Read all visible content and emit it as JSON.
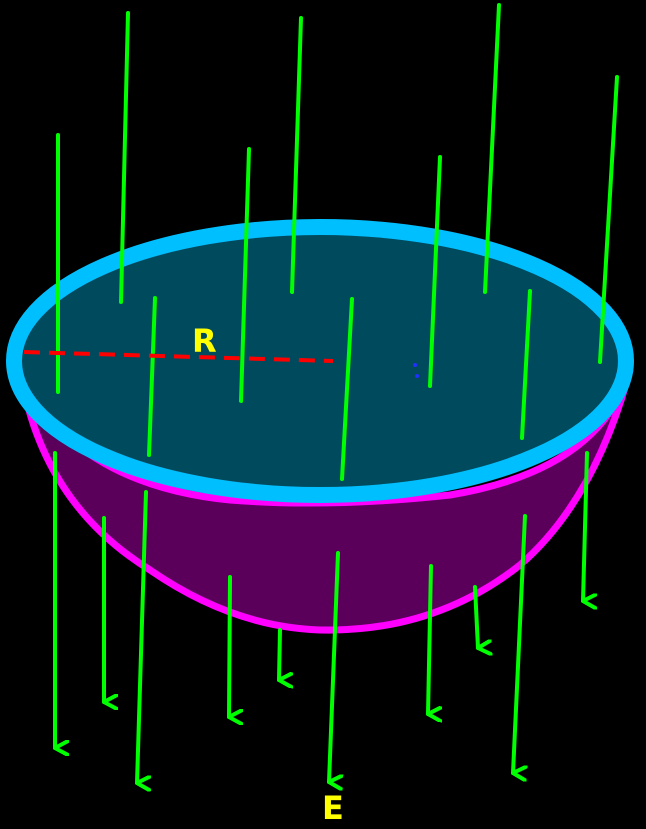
{
  "labels": {
    "radius": "R",
    "field": "E"
  },
  "colors": {
    "background": "#000000",
    "field_lines": "#00ff00",
    "rim": "#00bfff",
    "flat_face": "#004a5e",
    "bowl_fill": "#5a005a",
    "bowl_edge": "#ff00ff",
    "radius_line": "#ff0000",
    "labels": "#ffff00"
  }
}
